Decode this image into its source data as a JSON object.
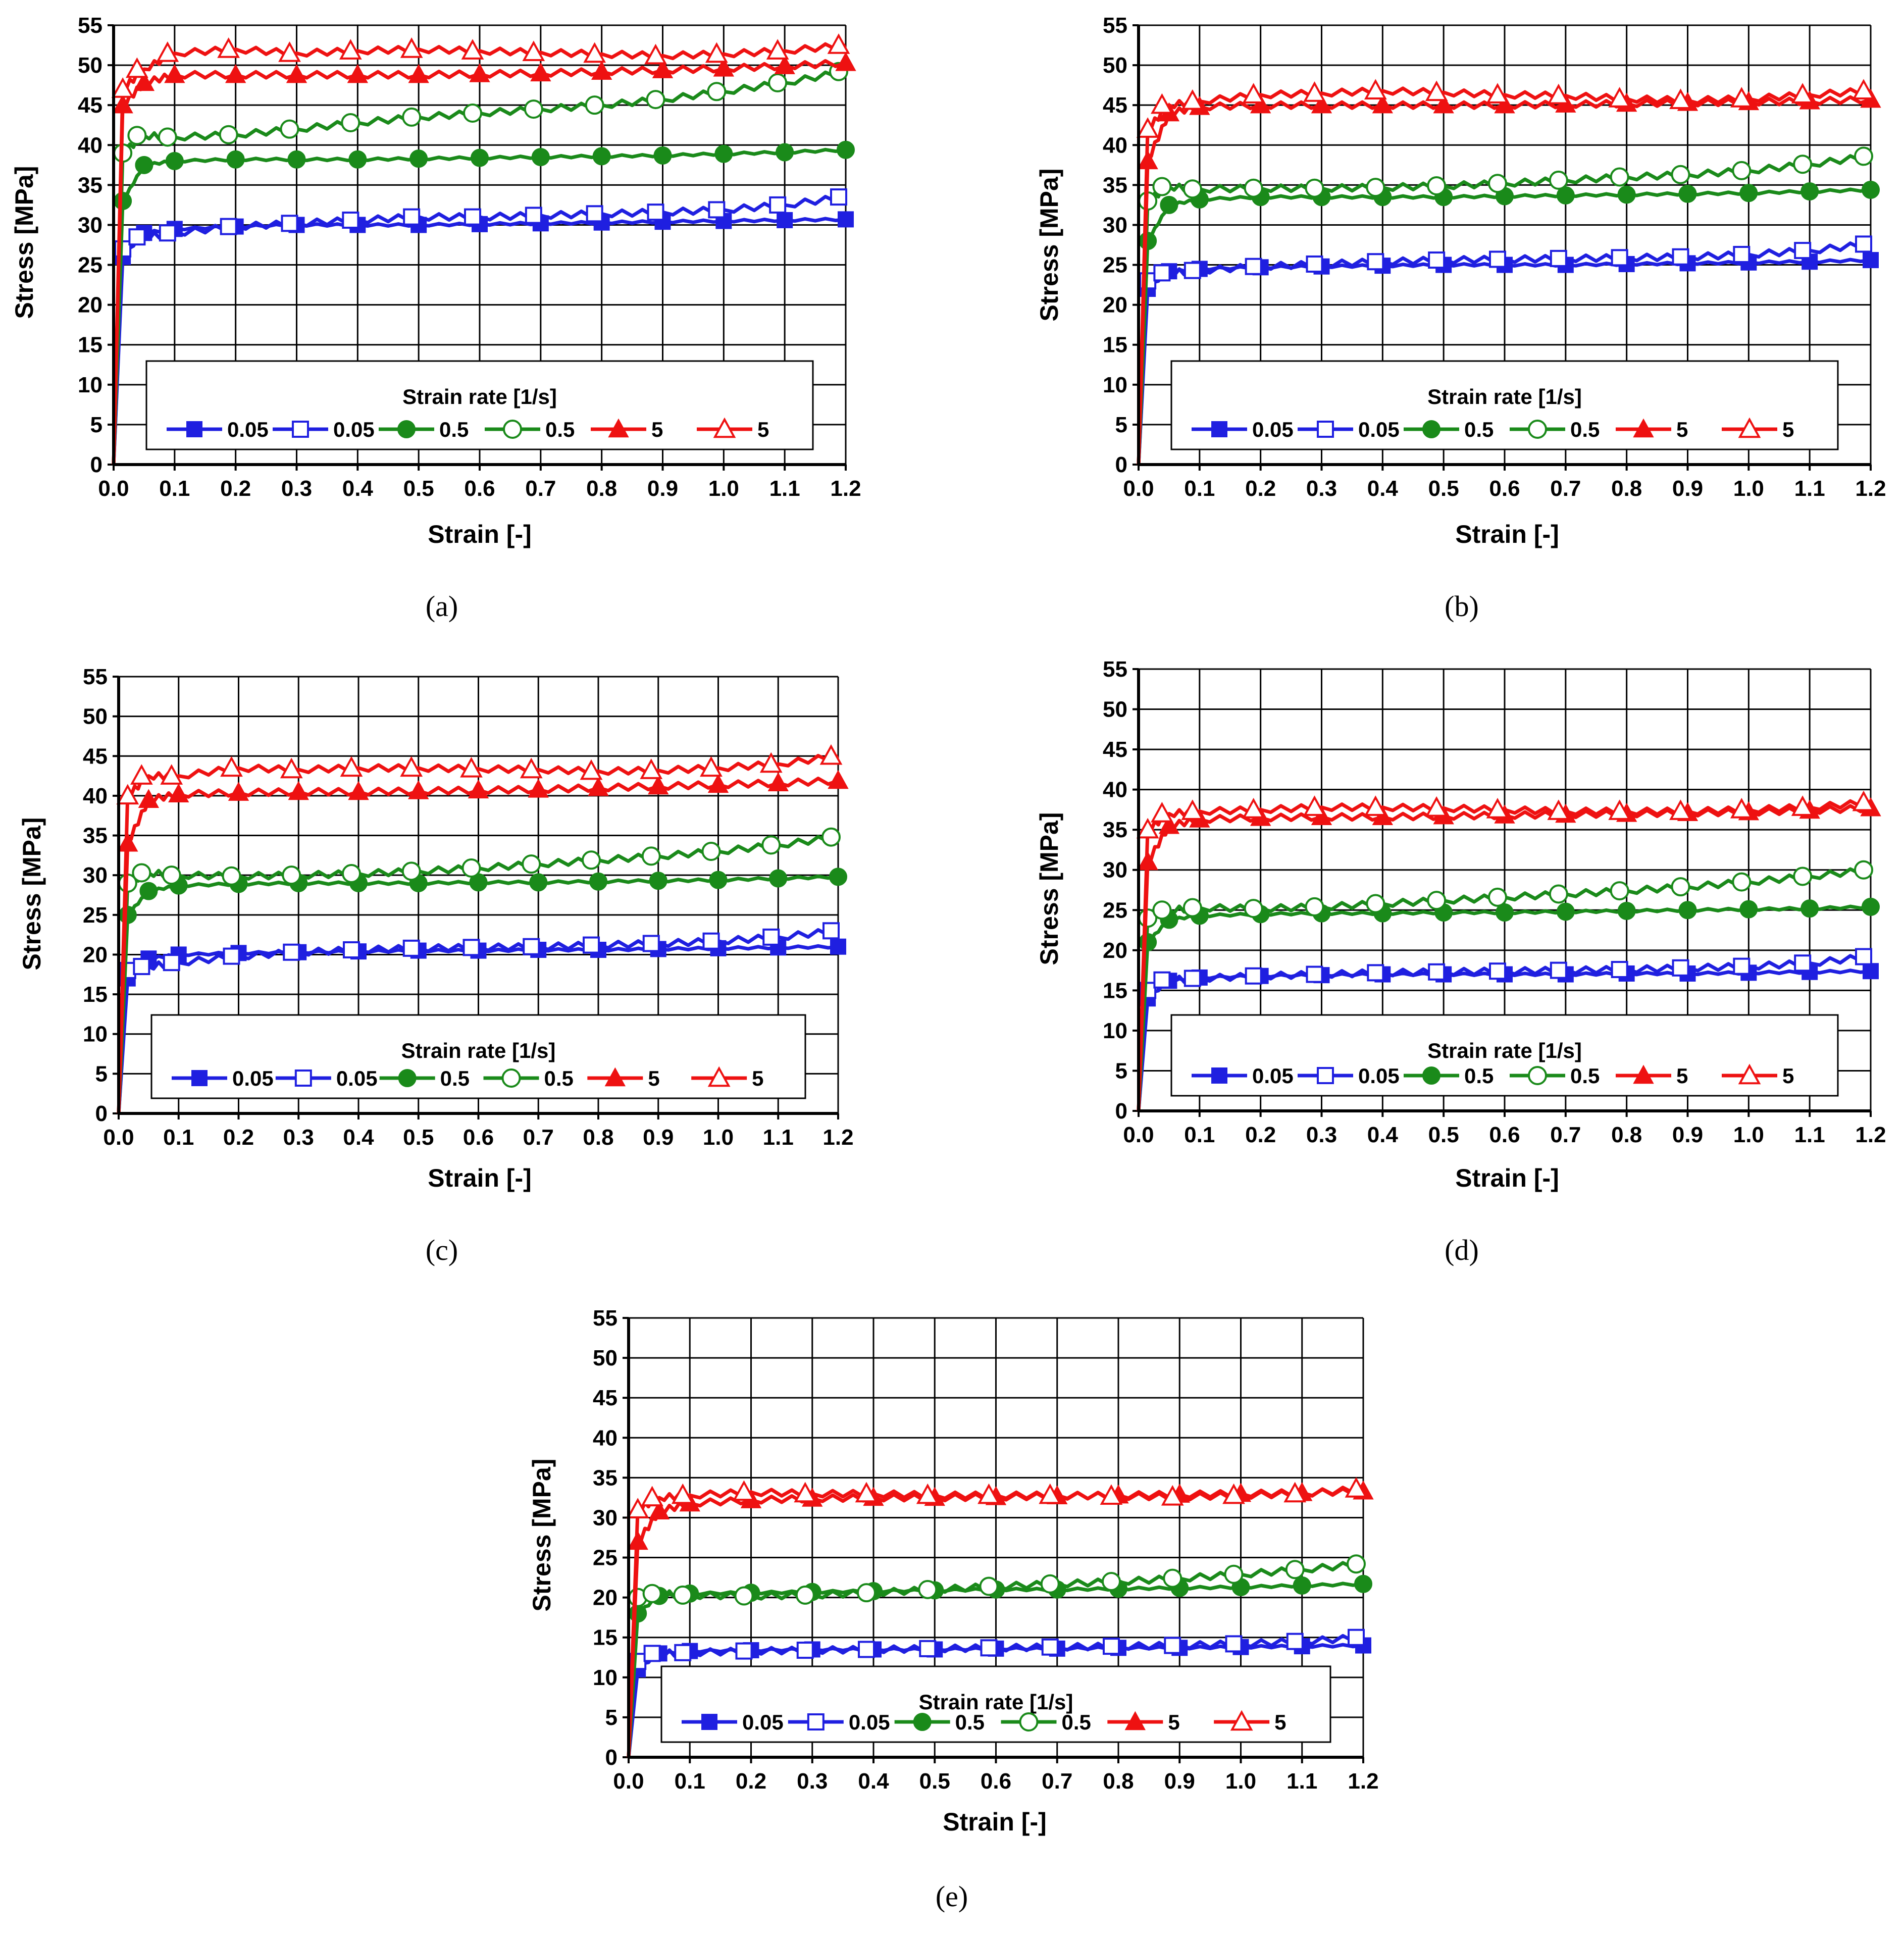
{
  "figure": {
    "legend_title": "Strain rate [1/s]",
    "legend_entries": [
      {
        "label": "0.05",
        "color": "#1f1fe0",
        "marker": "square",
        "filled": true
      },
      {
        "label": "0.05",
        "color": "#1f1fe0",
        "marker": "square",
        "filled": false
      },
      {
        "label": "0.5",
        "color": "#1a8a1a",
        "marker": "circle",
        "filled": true
      },
      {
        "label": "0.5",
        "color": "#1a8a1a",
        "marker": "circle",
        "filled": false
      },
      {
        "label": "5",
        "color": "#ee1111",
        "marker": "triangle",
        "filled": true
      },
      {
        "label": "5",
        "color": "#ee1111",
        "marker": "triangle",
        "filled": false
      }
    ],
    "panel_labels": [
      "(a)",
      "(b)",
      "(c)",
      "(d)",
      "(e)"
    ]
  },
  "chart_data": [
    {
      "type": "line",
      "panel": "(a)",
      "xlabel": "Strain [-]",
      "ylabel": "Stress [MPa]",
      "xlim": [
        0,
        1.2
      ],
      "ylim": [
        0,
        55
      ],
      "xticks": [
        "0.0",
        "0.1",
        "0.2",
        "0.3",
        "0.4",
        "0.5",
        "0.6",
        "0.7",
        "0.8",
        "0.9",
        "1.0",
        "1.1",
        "1.2"
      ],
      "yticks": [
        "0",
        "5",
        "10",
        "15",
        "20",
        "25",
        "30",
        "35",
        "40",
        "45",
        "50",
        "55"
      ],
      "x": [
        0.05,
        0.1,
        0.2,
        0.3,
        0.4,
        0.5,
        0.6,
        0.7,
        0.8,
        0.9,
        1.0,
        1.1,
        1.2
      ],
      "series": [
        {
          "name": "0.05",
          "marker": "filled-square",
          "color": "#1f1fe0",
          "y_initial": 26,
          "values": [
            29,
            29.5,
            29.8,
            30,
            30,
            30,
            30.1,
            30.2,
            30.3,
            30.4,
            30.5,
            30.6,
            30.7
          ]
        },
        {
          "name": "0.05",
          "marker": "open-square",
          "color": "#1f1fe0",
          "y_initial": 27,
          "values": [
            28.5,
            29,
            29.8,
            30.2,
            30.6,
            31,
            31,
            31.2,
            31.4,
            31.6,
            31.9,
            32.5,
            33.5
          ]
        },
        {
          "name": "0.5",
          "marker": "filled-circle",
          "color": "#1a8a1a",
          "y_initial": 33,
          "values": [
            37.5,
            38,
            38.2,
            38.2,
            38.2,
            38.3,
            38.4,
            38.5,
            38.6,
            38.7,
            38.9,
            39.1,
            39.4
          ]
        },
        {
          "name": "0.5",
          "marker": "open-circle",
          "color": "#1a8a1a",
          "y_initial": 39,
          "values": [
            41.2,
            41,
            41.3,
            42,
            42.8,
            43.5,
            44,
            44.5,
            45,
            45.7,
            46.7,
            47.8,
            49.2
          ]
        },
        {
          "name": "5",
          "marker": "filled-triangle",
          "color": "#ee1111",
          "y_initial": 45,
          "values": [
            47.8,
            48.8,
            48.8,
            48.8,
            48.8,
            48.8,
            48.9,
            49,
            49.2,
            49.4,
            49.6,
            49.9,
            50.3
          ]
        },
        {
          "name": "5",
          "marker": "open-triangle",
          "color": "#ee1111",
          "y_initial": 47,
          "values": [
            49.5,
            51.5,
            52,
            51.5,
            51.8,
            52,
            51.8,
            51.6,
            51.4,
            51.2,
            51.4,
            51.8,
            52.5
          ]
        }
      ]
    },
    {
      "type": "line",
      "panel": "(b)",
      "xlabel": "Strain [-]",
      "ylabel": "Stress [MPa]",
      "xlim": [
        0,
        1.2
      ],
      "ylim": [
        0,
        55
      ],
      "xticks": [
        "0.0",
        "0.1",
        "0.2",
        "0.3",
        "0.4",
        "0.5",
        "0.6",
        "0.7",
        "0.8",
        "0.9",
        "1.0",
        "1.1",
        "1.2"
      ],
      "yticks": [
        "0",
        "5",
        "10",
        "15",
        "20",
        "25",
        "30",
        "35",
        "40",
        "45",
        "50",
        "55"
      ],
      "x": [
        0.05,
        0.1,
        0.2,
        0.3,
        0.4,
        0.5,
        0.6,
        0.7,
        0.8,
        0.9,
        1.0,
        1.1,
        1.2
      ],
      "series": [
        {
          "name": "0.05",
          "marker": "filled-square",
          "color": "#1f1fe0",
          "y_initial": 22,
          "values": [
            24.2,
            24.5,
            24.7,
            24.8,
            24.9,
            25,
            25,
            25,
            25.1,
            25.2,
            25.3,
            25.4,
            25.6
          ]
        },
        {
          "name": "0.05",
          "marker": "open-square",
          "color": "#1f1fe0",
          "y_initial": 23,
          "values": [
            24,
            24.3,
            24.8,
            25.1,
            25.4,
            25.6,
            25.7,
            25.8,
            25.9,
            26,
            26.3,
            26.8,
            27.6
          ]
        },
        {
          "name": "0.5",
          "marker": "filled-circle",
          "color": "#1a8a1a",
          "y_initial": 28,
          "values": [
            32.5,
            33.2,
            33.5,
            33.5,
            33.5,
            33.5,
            33.6,
            33.7,
            33.8,
            33.9,
            34,
            34.2,
            34.4
          ]
        },
        {
          "name": "0.5",
          "marker": "open-circle",
          "color": "#1a8a1a",
          "y_initial": 33,
          "values": [
            34.8,
            34.5,
            34.6,
            34.6,
            34.7,
            34.9,
            35.2,
            35.6,
            36,
            36.3,
            36.8,
            37.6,
            38.6
          ]
        },
        {
          "name": "5",
          "marker": "filled-triangle",
          "color": "#ee1111",
          "y_initial": 38,
          "values": [
            44,
            44.8,
            45,
            45,
            45,
            45,
            45,
            45.1,
            45.2,
            45.3,
            45.4,
            45.5,
            45.7
          ]
        },
        {
          "name": "5",
          "marker": "open-triangle",
          "color": "#ee1111",
          "y_initial": 42,
          "values": [
            45,
            45.5,
            46.3,
            46.5,
            46.8,
            46.6,
            46.3,
            46.2,
            45.8,
            45.6,
            45.8,
            46.3,
            46.8
          ]
        }
      ]
    },
    {
      "type": "line",
      "panel": "(c)",
      "xlabel": "Strain [-]",
      "ylabel": "Stress [MPa]",
      "xlim": [
        0,
        1.2
      ],
      "ylim": [
        0,
        55
      ],
      "xticks": [
        "0.0",
        "0.1",
        "0.2",
        "0.3",
        "0.4",
        "0.5",
        "0.6",
        "0.7",
        "0.8",
        "0.9",
        "1.0",
        "1.1",
        "1.2"
      ],
      "yticks": [
        "0",
        "5",
        "10",
        "15",
        "20",
        "25",
        "30",
        "35",
        "40",
        "45",
        "50",
        "55"
      ],
      "x": [
        0.05,
        0.1,
        0.2,
        0.3,
        0.4,
        0.5,
        0.6,
        0.7,
        0.8,
        0.9,
        1.0,
        1.1,
        1.2
      ],
      "series": [
        {
          "name": "0.05",
          "marker": "filled-square",
          "color": "#1f1fe0",
          "y_initial": 17,
          "values": [
            19.5,
            20,
            20.2,
            20.3,
            20.4,
            20.5,
            20.5,
            20.6,
            20.6,
            20.7,
            20.8,
            20.9,
            21
          ]
        },
        {
          "name": "0.05",
          "marker": "open-square",
          "color": "#1f1fe0",
          "y_initial": 18,
          "values": [
            18.5,
            19,
            19.8,
            20.3,
            20.6,
            20.8,
            20.9,
            21,
            21.2,
            21.4,
            21.7,
            22.2,
            23
          ]
        },
        {
          "name": "0.5",
          "marker": "filled-circle",
          "color": "#1a8a1a",
          "y_initial": 25,
          "values": [
            28,
            28.7,
            28.9,
            29,
            29,
            29,
            29.1,
            29.1,
            29.2,
            29.3,
            29.4,
            29.6,
            29.8
          ]
        },
        {
          "name": "0.5",
          "marker": "open-circle",
          "color": "#1a8a1a",
          "y_initial": 29,
          "values": [
            30.3,
            30,
            29.9,
            30,
            30.2,
            30.5,
            30.9,
            31.4,
            31.9,
            32.4,
            33,
            33.8,
            34.8
          ]
        },
        {
          "name": "5",
          "marker": "filled-triangle",
          "color": "#ee1111",
          "y_initial": 34,
          "values": [
            39.5,
            40.2,
            40.4,
            40.5,
            40.5,
            40.6,
            40.7,
            40.8,
            41,
            41.2,
            41.4,
            41.6,
            41.9
          ]
        },
        {
          "name": "5",
          "marker": "open-triangle",
          "color": "#ee1111",
          "y_initial": 40,
          "values": [
            42.5,
            42.5,
            43.5,
            43.3,
            43.5,
            43.5,
            43.4,
            43.3,
            43.1,
            43.2,
            43.5,
            44,
            45
          ]
        }
      ]
    },
    {
      "type": "line",
      "panel": "(d)",
      "xlabel": "Strain [-]",
      "ylabel": "Stress [MPa]",
      "xlim": [
        0,
        1.2
      ],
      "ylim": [
        0,
        55
      ],
      "xticks": [
        "0.0",
        "0.1",
        "0.2",
        "0.3",
        "0.4",
        "0.5",
        "0.6",
        "0.7",
        "0.8",
        "0.9",
        "1.0",
        "1.1",
        "1.2"
      ],
      "yticks": [
        "0",
        "5",
        "10",
        "15",
        "20",
        "25",
        "30",
        "35",
        "40",
        "45",
        "50",
        "55"
      ],
      "x": [
        0.05,
        0.1,
        0.2,
        0.3,
        0.4,
        0.5,
        0.6,
        0.7,
        0.8,
        0.9,
        1.0,
        1.1,
        1.2
      ],
      "series": [
        {
          "name": "0.05",
          "marker": "filled-square",
          "color": "#1f1fe0",
          "y_initial": 14,
          "values": [
            16.2,
            16.6,
            16.8,
            16.9,
            17,
            17,
            17,
            17,
            17.1,
            17.1,
            17.2,
            17.3,
            17.4
          ]
        },
        {
          "name": "0.05",
          "marker": "open-square",
          "color": "#1f1fe0",
          "y_initial": 15,
          "values": [
            16.3,
            16.5,
            16.8,
            17,
            17.2,
            17.3,
            17.4,
            17.5,
            17.6,
            17.8,
            18,
            18.4,
            19.2
          ]
        },
        {
          "name": "0.5",
          "marker": "filled-circle",
          "color": "#1a8a1a",
          "y_initial": 21,
          "values": [
            23.8,
            24.3,
            24.5,
            24.6,
            24.6,
            24.7,
            24.7,
            24.8,
            24.9,
            25,
            25.1,
            25.2,
            25.4
          ]
        },
        {
          "name": "0.5",
          "marker": "open-circle",
          "color": "#1a8a1a",
          "y_initial": 24,
          "values": [
            25,
            25.3,
            25.2,
            25.4,
            25.8,
            26.2,
            26.6,
            27,
            27.4,
            27.9,
            28.5,
            29.2,
            30
          ]
        },
        {
          "name": "5",
          "marker": "filled-triangle",
          "color": "#ee1111",
          "y_initial": 31,
          "values": [
            35.5,
            36.3,
            36.5,
            36.6,
            36.6,
            36.7,
            36.8,
            36.9,
            37,
            37.1,
            37.2,
            37.4,
            37.7
          ]
        },
        {
          "name": "5",
          "marker": "open-triangle",
          "color": "#ee1111",
          "y_initial": 35,
          "values": [
            37,
            37.3,
            37.5,
            37.8,
            37.8,
            37.7,
            37.5,
            37.3,
            37.3,
            37.3,
            37.5,
            37.8,
            38.4
          ]
        }
      ]
    },
    {
      "type": "line",
      "panel": "(e)",
      "xlabel": "Strain [-]",
      "ylabel": "Stress [MPa]",
      "xlim": [
        0,
        1.2
      ],
      "ylim": [
        0,
        55
      ],
      "xticks": [
        "0.0",
        "0.1",
        "0.2",
        "0.3",
        "0.4",
        "0.5",
        "0.6",
        "0.7",
        "0.8",
        "0.9",
        "1.0",
        "1.1",
        "1.2"
      ],
      "yticks": [
        "0",
        "5",
        "10",
        "15",
        "20",
        "25",
        "30",
        "35",
        "40",
        "45",
        "50",
        "55"
      ],
      "x": [
        0.05,
        0.1,
        0.2,
        0.3,
        0.4,
        0.5,
        0.6,
        0.7,
        0.8,
        0.9,
        1.0,
        1.1,
        1.2
      ],
      "series": [
        {
          "name": "0.05",
          "marker": "filled-square",
          "color": "#1f1fe0",
          "y_initial": 11,
          "values": [
            13,
            13.3,
            13.4,
            13.5,
            13.5,
            13.5,
            13.6,
            13.6,
            13.7,
            13.7,
            13.8,
            13.9,
            14
          ]
        },
        {
          "name": "0.05",
          "marker": "open-square",
          "color": "#1f1fe0",
          "y_initial": 12,
          "values": [
            13,
            13.1,
            13.3,
            13.4,
            13.5,
            13.6,
            13.7,
            13.8,
            13.9,
            14,
            14.2,
            14.5,
            15
          ]
        },
        {
          "name": "0.5",
          "marker": "filled-circle",
          "color": "#1a8a1a",
          "y_initial": 18,
          "values": [
            20.2,
            20.5,
            20.6,
            20.7,
            20.8,
            20.9,
            21,
            21,
            21.1,
            21.2,
            21.3,
            21.5,
            21.7
          ]
        },
        {
          "name": "0.5",
          "marker": "open-circle",
          "color": "#1a8a1a",
          "y_initial": 20,
          "values": [
            20.5,
            20.3,
            20.2,
            20.3,
            20.6,
            21,
            21.4,
            21.7,
            22,
            22.4,
            22.9,
            23.5,
            24.2
          ]
        },
        {
          "name": "5",
          "marker": "filled-triangle",
          "color": "#ee1111",
          "y_initial": 27,
          "values": [
            30.8,
            31.8,
            32.2,
            32.4,
            32.5,
            32.5,
            32.6,
            32.7,
            32.8,
            32.9,
            33,
            33.1,
            33.3
          ]
        },
        {
          "name": "5",
          "marker": "open-triangle",
          "color": "#ee1111",
          "y_initial": 31,
          "values": [
            32.5,
            32.8,
            33.2,
            33,
            33,
            32.8,
            32.8,
            32.8,
            32.7,
            32.6,
            32.8,
            33,
            33.6
          ]
        }
      ]
    }
  ]
}
